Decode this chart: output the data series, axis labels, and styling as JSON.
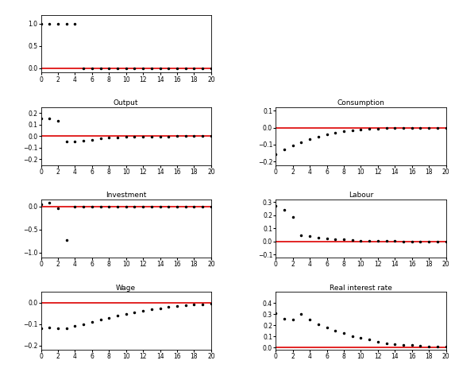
{
  "xlim": [
    0,
    20
  ],
  "xticks": [
    0,
    2,
    4,
    6,
    8,
    10,
    12,
    14,
    16,
    18,
    20
  ],
  "red_line_color": "#dd0000",
  "dot_color": "#000000",
  "dot_size": 3,
  "red_lw": 1.2,
  "tick_labelsize": 5.5,
  "title_fontsize": 6.5,
  "panels": [
    {
      "title": "",
      "ylim": [
        -0.1,
        1.2
      ],
      "yticks": [
        0,
        0.5,
        1
      ],
      "data": [
        1.0,
        1.0,
        1.0,
        1.0,
        1.0,
        0.0,
        0.0,
        0.0,
        0.0,
        0.0,
        0.0,
        0.0,
        0.0,
        0.0,
        0.0,
        0.0,
        0.0,
        0.0,
        0.0,
        0.0,
        0.0
      ]
    },
    {
      "title": "Output",
      "ylim": [
        -0.25,
        0.25
      ],
      "yticks": [
        -0.2,
        -0.1,
        0,
        0.1,
        0.2
      ],
      "data": [
        0.155,
        0.155,
        0.13,
        -0.05,
        -0.05,
        -0.04,
        -0.03,
        -0.02,
        -0.015,
        -0.01,
        -0.008,
        -0.005,
        -0.004,
        -0.003,
        -0.002,
        -0.002,
        -0.001,
        -0.001,
        -0.001,
        0.0,
        0.0
      ]
    },
    {
      "title": "Consumption",
      "ylim": [
        -0.22,
        0.12
      ],
      "yticks": [
        -0.2,
        -0.1,
        0,
        0.1
      ],
      "data": [
        -0.155,
        -0.13,
        -0.105,
        -0.085,
        -0.068,
        -0.053,
        -0.04,
        -0.03,
        -0.022,
        -0.016,
        -0.011,
        -0.008,
        -0.005,
        -0.004,
        -0.003,
        -0.002,
        -0.002,
        -0.001,
        -0.001,
        0.0,
        0.0
      ]
    },
    {
      "title": "Investment",
      "ylim": [
        -1.1,
        0.15
      ],
      "yticks": [
        -1,
        -0.5,
        0
      ],
      "data": [
        0.05,
        0.08,
        -0.04,
        -0.72,
        0.0,
        0.0,
        0.0,
        0.0,
        0.0,
        0.0,
        0.0,
        0.0,
        0.0,
        0.0,
        0.0,
        0.0,
        0.0,
        0.0,
        0.0,
        0.0,
        0.0
      ]
    },
    {
      "title": "Labour",
      "ylim": [
        -0.12,
        0.32
      ],
      "yticks": [
        -0.1,
        0,
        0.1,
        0.2,
        0.3
      ],
      "data": [
        0.27,
        0.24,
        0.19,
        0.05,
        0.04,
        0.03,
        0.025,
        0.02,
        0.015,
        0.01,
        0.008,
        0.006,
        0.005,
        0.004,
        0.003,
        0.002,
        0.001,
        0.001,
        0.001,
        0.0,
        0.0
      ]
    },
    {
      "title": "Wage",
      "ylim": [
        -0.22,
        0.05
      ],
      "yticks": [
        -0.2,
        -0.1,
        0
      ],
      "data": [
        -0.12,
        -0.115,
        -0.12,
        -0.12,
        -0.11,
        -0.1,
        -0.09,
        -0.08,
        -0.07,
        -0.062,
        -0.054,
        -0.046,
        -0.038,
        -0.032,
        -0.026,
        -0.021,
        -0.017,
        -0.013,
        -0.01,
        -0.008,
        -0.006
      ]
    },
    {
      "title": "Real interest rate",
      "ylim": [
        -0.02,
        0.5
      ],
      "yticks": [
        0,
        0.1,
        0.2,
        0.3,
        0.4
      ],
      "data": [
        0.31,
        0.26,
        0.25,
        0.3,
        0.25,
        0.21,
        0.18,
        0.15,
        0.13,
        0.1,
        0.09,
        0.07,
        0.05,
        0.04,
        0.03,
        0.025,
        0.02,
        0.015,
        0.01,
        0.008,
        0.005
      ]
    }
  ]
}
